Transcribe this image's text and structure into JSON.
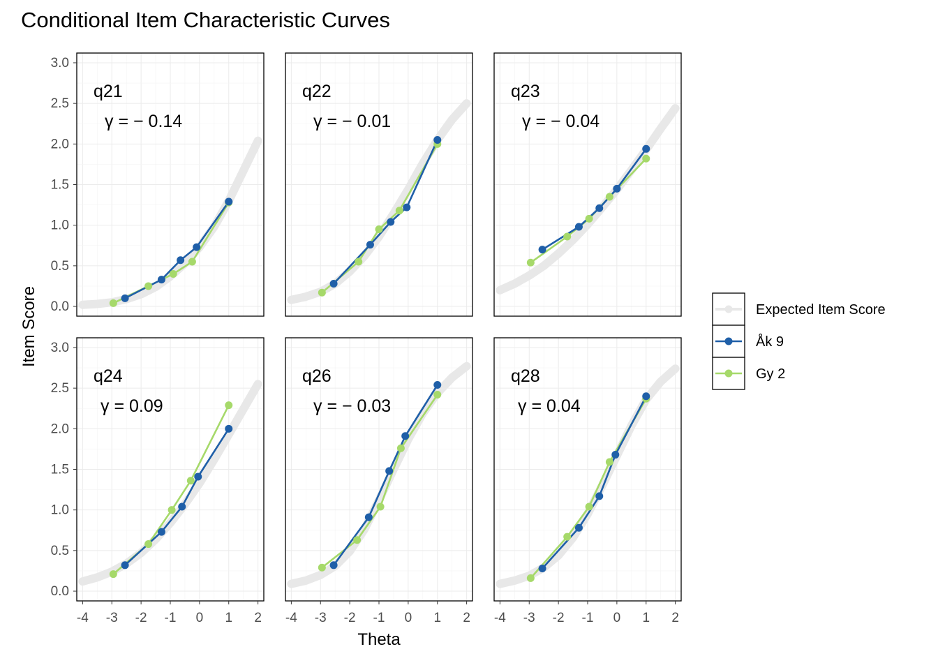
{
  "chart_data": {
    "type": "line",
    "title": "Conditional Item Characteristic Curves",
    "xlabel": "Theta",
    "ylabel": "Item Score",
    "xlim": [
      -4.2,
      2.2
    ],
    "ylim": [
      -0.12,
      3.12
    ],
    "x_ticks": [
      -4,
      -3,
      -2,
      -1,
      0,
      1,
      2
    ],
    "x_tick_labels": [
      "-4",
      "-3",
      "-2",
      "-1",
      "0",
      "1",
      "2"
    ],
    "y_ticks": [
      0.0,
      0.5,
      1.0,
      1.5,
      2.0,
      2.5,
      3.0
    ],
    "y_tick_labels": [
      "0.0",
      "0.5",
      "1.0",
      "1.5",
      "2.0",
      "2.5",
      "3.0"
    ],
    "grid": true,
    "legend_position": "right",
    "legend": [
      {
        "label": "Expected Item Score",
        "color": "#e8e8e8"
      },
      {
        "label": "Åk 9",
        "color": "#1f5fa8"
      },
      {
        "label": "Gy 2",
        "color": "#a6d96a"
      }
    ],
    "panels": [
      {
        "item": "q21",
        "gamma_label": "γ = − 0.14",
        "expected": {
          "x": [
            -4.0,
            -3.5,
            -3.0,
            -2.5,
            -2.0,
            -1.5,
            -1.0,
            -0.5,
            0.0,
            0.5,
            1.0,
            1.5,
            2.0
          ],
          "y": [
            0.02,
            0.03,
            0.05,
            0.09,
            0.15,
            0.24,
            0.37,
            0.53,
            0.73,
            0.98,
            1.3,
            1.67,
            2.04
          ]
        },
        "series": [
          {
            "name": "Åk 9",
            "x": [
              -2.55,
              -1.3,
              -0.65,
              -0.1,
              1.0
            ],
            "y": [
              0.1,
              0.33,
              0.57,
              0.73,
              1.29
            ]
          },
          {
            "name": "Gy 2",
            "x": [
              -2.95,
              -1.75,
              -0.9,
              -0.25,
              1.0
            ],
            "y": [
              0.04,
              0.25,
              0.4,
              0.55,
              1.28
            ]
          }
        ]
      },
      {
        "item": "q22",
        "gamma_label": "γ = − 0.01",
        "expected": {
          "x": [
            -4.0,
            -3.5,
            -3.0,
            -2.5,
            -2.0,
            -1.5,
            -1.0,
            -0.5,
            0.0,
            0.5,
            1.0,
            1.5,
            2.0
          ],
          "y": [
            0.08,
            0.12,
            0.18,
            0.28,
            0.43,
            0.62,
            0.86,
            1.14,
            1.44,
            1.76,
            2.05,
            2.3,
            2.5
          ]
        },
        "series": [
          {
            "name": "Åk 9",
            "x": [
              -2.55,
              -1.3,
              -0.6,
              -0.05,
              1.0
            ],
            "y": [
              0.28,
              0.76,
              1.04,
              1.22,
              2.05
            ]
          },
          {
            "name": "Gy 2",
            "x": [
              -2.95,
              -1.7,
              -1.0,
              -0.3,
              1.0
            ],
            "y": [
              0.17,
              0.55,
              0.95,
              1.18,
              2.0
            ]
          }
        ]
      },
      {
        "item": "q23",
        "gamma_label": "γ = − 0.04",
        "expected": {
          "x": [
            -4.0,
            -3.5,
            -3.0,
            -2.5,
            -2.0,
            -1.5,
            -1.0,
            -0.5,
            0.0,
            0.5,
            1.0,
            1.5,
            2.0
          ],
          "y": [
            0.2,
            0.28,
            0.38,
            0.5,
            0.65,
            0.82,
            1.01,
            1.22,
            1.44,
            1.68,
            1.93,
            2.19,
            2.44
          ]
        },
        "series": [
          {
            "name": "Åk 9",
            "x": [
              -2.55,
              -1.3,
              -0.6,
              0.0,
              1.0
            ],
            "y": [
              0.7,
              0.98,
              1.21,
              1.45,
              1.94
            ]
          },
          {
            "name": "Gy 2",
            "x": [
              -2.95,
              -1.7,
              -0.95,
              -0.25,
              1.0
            ],
            "y": [
              0.54,
              0.86,
              1.08,
              1.35,
              1.82
            ]
          }
        ]
      },
      {
        "item": "q24",
        "gamma_label": "γ = 0.09",
        "expected": {
          "x": [
            -4.0,
            -3.5,
            -3.0,
            -2.5,
            -2.0,
            -1.5,
            -1.0,
            -0.5,
            0.0,
            0.5,
            1.0,
            1.5,
            2.0
          ],
          "y": [
            0.12,
            0.17,
            0.24,
            0.34,
            0.47,
            0.64,
            0.84,
            1.07,
            1.33,
            1.62,
            1.93,
            2.24,
            2.55
          ]
        },
        "series": [
          {
            "name": "Åk 9",
            "x": [
              -2.55,
              -1.3,
              -0.6,
              -0.05,
              1.0
            ],
            "y": [
              0.32,
              0.73,
              1.04,
              1.41,
              2.0
            ]
          },
          {
            "name": "Gy 2",
            "x": [
              -2.95,
              -1.75,
              -0.95,
              -0.3,
              1.0
            ],
            "y": [
              0.21,
              0.58,
              1.0,
              1.36,
              2.29
            ]
          }
        ]
      },
      {
        "item": "q26",
        "gamma_label": "γ = − 0.03",
        "expected": {
          "x": [
            -4.0,
            -3.5,
            -3.0,
            -2.5,
            -2.0,
            -1.5,
            -1.0,
            -0.5,
            0.0,
            0.5,
            1.0,
            1.5,
            2.0
          ],
          "y": [
            0.09,
            0.13,
            0.2,
            0.31,
            0.49,
            0.76,
            1.12,
            1.5,
            1.87,
            2.19,
            2.44,
            2.63,
            2.77
          ]
        },
        "series": [
          {
            "name": "Åk 9",
            "x": [
              -2.55,
              -1.35,
              -0.65,
              -0.1,
              1.0
            ],
            "y": [
              0.32,
              0.91,
              1.48,
              1.91,
              2.54
            ]
          },
          {
            "name": "Gy 2",
            "x": [
              -2.95,
              -1.75,
              -0.95,
              -0.25,
              1.0
            ],
            "y": [
              0.29,
              0.63,
              1.04,
              1.76,
              2.42
            ]
          }
        ]
      },
      {
        "item": "q28",
        "gamma_label": "γ = 0.04",
        "expected": {
          "x": [
            -4.0,
            -3.5,
            -3.0,
            -2.5,
            -2.0,
            -1.5,
            -1.0,
            -0.5,
            0.0,
            0.5,
            1.0,
            1.5,
            2.0
          ],
          "y": [
            0.09,
            0.13,
            0.19,
            0.29,
            0.44,
            0.66,
            0.95,
            1.3,
            1.67,
            2.04,
            2.36,
            2.58,
            2.74
          ]
        },
        "series": [
          {
            "name": "Åk 9",
            "x": [
              -2.55,
              -1.3,
              -0.6,
              -0.05,
              1.0
            ],
            "y": [
              0.28,
              0.78,
              1.17,
              1.68,
              2.4
            ]
          },
          {
            "name": "Gy 2",
            "x": [
              -2.95,
              -1.7,
              -0.95,
              -0.25,
              1.0
            ],
            "y": [
              0.16,
              0.67,
              1.04,
              1.59,
              2.37
            ]
          }
        ]
      }
    ]
  }
}
